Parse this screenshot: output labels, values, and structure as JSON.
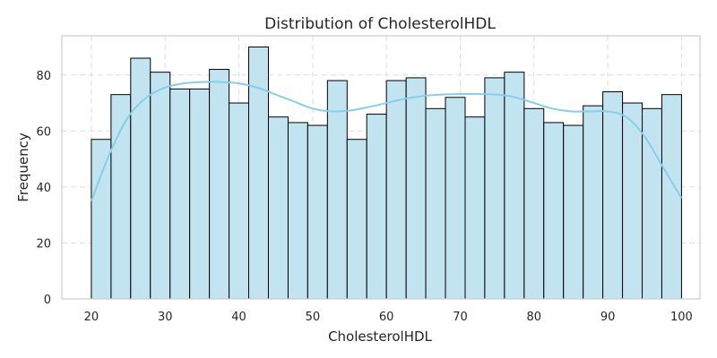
{
  "chart_data": {
    "type": "bar",
    "title": "Distribution of CholesterolHDL",
    "xlabel": "CholesterolHDL",
    "ylabel": "Frequency",
    "xlim": [
      16,
      102.5
    ],
    "ylim": [
      0,
      94
    ],
    "xticks": [
      20,
      30,
      40,
      50,
      60,
      70,
      80,
      90,
      100
    ],
    "yticks": [
      0,
      20,
      40,
      60,
      80
    ],
    "grid": true,
    "bin_edges": [
      20,
      22.67,
      25.33,
      28,
      30.67,
      33.33,
      36,
      38.67,
      41.33,
      44,
      46.67,
      49.33,
      52,
      54.67,
      57.33,
      60,
      62.67,
      65.33,
      68,
      70.67,
      73.33,
      76,
      78.67,
      81.33,
      84,
      86.67,
      89.33,
      92,
      94.67,
      97.33,
      100
    ],
    "values": [
      57,
      73,
      86,
      81,
      75,
      75,
      82,
      70,
      90,
      65,
      63,
      62,
      78,
      57,
      66,
      78,
      79,
      68,
      72,
      65,
      79,
      81,
      68,
      63,
      62,
      69,
      74,
      70,
      68,
      73
    ],
    "kde": {
      "x": [
        20,
        22.5,
        25,
        27.5,
        30,
        32.5,
        35,
        37.5,
        40,
        42.5,
        45,
        47.5,
        50,
        52.5,
        55,
        57.5,
        60,
        62.5,
        65,
        67.5,
        70,
        72.5,
        75,
        77.5,
        80,
        82.5,
        85,
        87.5,
        90,
        92.5,
        95,
        97.5,
        100
      ],
      "y": [
        35,
        52,
        65,
        72,
        75.5,
        77,
        77.5,
        77.5,
        77,
        75.5,
        73,
        70.5,
        68,
        67,
        67.3,
        68.5,
        70,
        71.5,
        72.5,
        73,
        73.2,
        73.2,
        73,
        72,
        70,
        68,
        67,
        67,
        67,
        65,
        58,
        47,
        36
      ]
    },
    "colors": {
      "bar_fill": "#c2e4f1",
      "bar_edge": "#000000",
      "kde_line": "#87ceeb",
      "grid": "#dddddd",
      "frame": "#cccccc"
    }
  }
}
